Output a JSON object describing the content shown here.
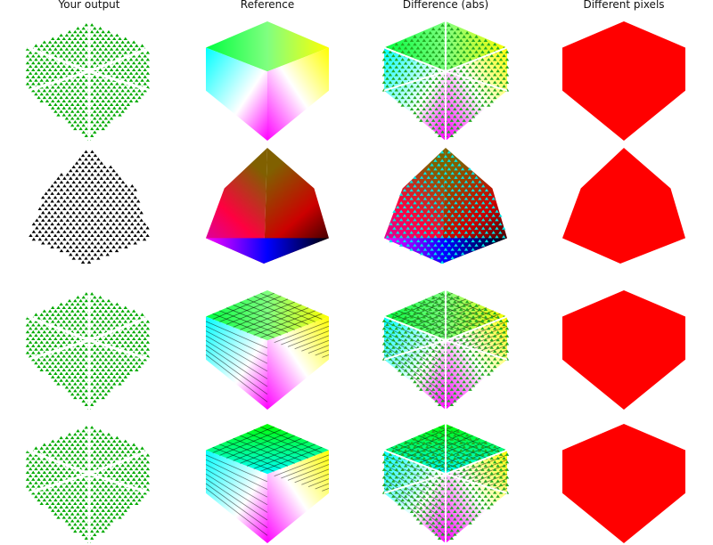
{
  "columns": [
    {
      "title": "Your output",
      "kind": "output"
    },
    {
      "title": "Reference",
      "kind": "reference"
    },
    {
      "title": "Difference (abs)",
      "kind": "difference"
    },
    {
      "title": "Different pixels",
      "kind": "mask"
    }
  ],
  "rows": [
    {
      "shape": "cube",
      "output_color": "#00aa00"
    },
    {
      "shape": "octahedron",
      "output_color": "#000000"
    },
    {
      "shape": "cube-outlined",
      "output_color": "#00aa00"
    },
    {
      "shape": "cube-inner",
      "output_color": "#00aa00"
    }
  ],
  "colors": {
    "mask": "#ff0000",
    "outline": "#000000"
  }
}
